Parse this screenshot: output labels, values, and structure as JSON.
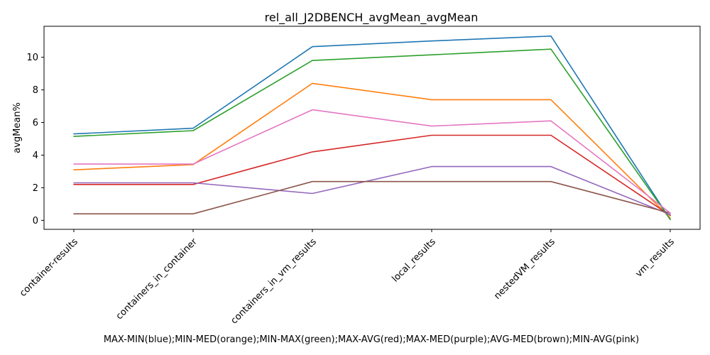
{
  "chart_data": {
    "type": "line",
    "title": "rel_all_J2DBENCH_avgMean_avgMean",
    "xlabel": "MAX-MIN(blue);MIN-MED(orange);MIN-MAX(green);MAX-AVG(red);MAX-MED(purple);AVG-MED(brown);MIN-AVG(pink)",
    "ylabel": "avgMean%",
    "categories": [
      "container-results",
      "containers_in_container",
      "containers_in_vm_results",
      "local_results",
      "nestedVM_results",
      "vm_results"
    ],
    "ylim": [
      -0.55,
      11.9
    ],
    "yticks": [
      0,
      2,
      4,
      6,
      8,
      10
    ],
    "grid": false,
    "legend": "none",
    "series": [
      {
        "color": "#1f77b4",
        "values": [
          5.3,
          5.65,
          10.65,
          11.0,
          11.3,
          0.05
        ]
      },
      {
        "color": "#ff7f0e",
        "values": [
          3.1,
          3.42,
          8.4,
          7.4,
          7.4,
          0.15
        ]
      },
      {
        "color": "#2ca02c",
        "values": [
          5.15,
          5.5,
          9.8,
          10.15,
          10.5,
          0.05
        ]
      },
      {
        "color": "#d62728",
        "values": [
          2.2,
          2.2,
          4.2,
          5.22,
          5.22,
          0.3
        ]
      },
      {
        "color": "#9467bd",
        "values": [
          2.3,
          2.3,
          1.65,
          3.3,
          3.3,
          0.35
        ]
      },
      {
        "color": "#8c564b",
        "values": [
          0.4,
          0.4,
          2.38,
          2.38,
          2.38,
          0.45
        ]
      },
      {
        "color": "#e377c2",
        "values": [
          3.45,
          3.45,
          6.78,
          5.78,
          6.1,
          0.45
        ]
      }
    ]
  }
}
